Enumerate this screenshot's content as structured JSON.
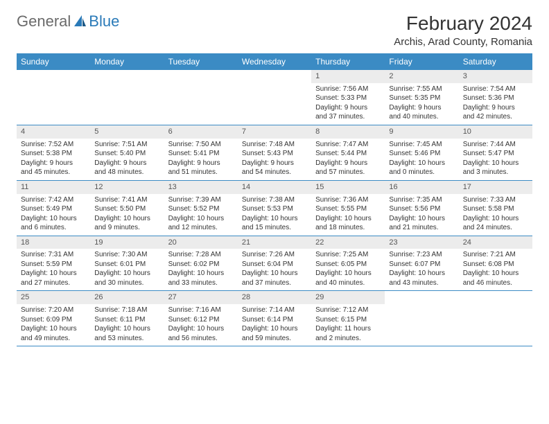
{
  "logo": {
    "text_general": "General",
    "text_blue": "Blue",
    "icon_color": "#2a7ab8"
  },
  "header": {
    "month_title": "February 2024",
    "location": "Archis, Arad County, Romania"
  },
  "colors": {
    "header_bar": "#3b8bc4",
    "header_bar_text": "#ffffff",
    "day_number_bg": "#ececec",
    "border": "#3b8bc4",
    "text": "#333333"
  },
  "weekdays": [
    "Sunday",
    "Monday",
    "Tuesday",
    "Wednesday",
    "Thursday",
    "Friday",
    "Saturday"
  ],
  "weeks": [
    [
      {
        "empty": true
      },
      {
        "empty": true
      },
      {
        "empty": true
      },
      {
        "empty": true
      },
      {
        "num": "1",
        "sunrise": "Sunrise: 7:56 AM",
        "sunset": "Sunset: 5:33 PM",
        "daylight1": "Daylight: 9 hours",
        "daylight2": "and 37 minutes."
      },
      {
        "num": "2",
        "sunrise": "Sunrise: 7:55 AM",
        "sunset": "Sunset: 5:35 PM",
        "daylight1": "Daylight: 9 hours",
        "daylight2": "and 40 minutes."
      },
      {
        "num": "3",
        "sunrise": "Sunrise: 7:54 AM",
        "sunset": "Sunset: 5:36 PM",
        "daylight1": "Daylight: 9 hours",
        "daylight2": "and 42 minutes."
      }
    ],
    [
      {
        "num": "4",
        "sunrise": "Sunrise: 7:52 AM",
        "sunset": "Sunset: 5:38 PM",
        "daylight1": "Daylight: 9 hours",
        "daylight2": "and 45 minutes."
      },
      {
        "num": "5",
        "sunrise": "Sunrise: 7:51 AM",
        "sunset": "Sunset: 5:40 PM",
        "daylight1": "Daylight: 9 hours",
        "daylight2": "and 48 minutes."
      },
      {
        "num": "6",
        "sunrise": "Sunrise: 7:50 AM",
        "sunset": "Sunset: 5:41 PM",
        "daylight1": "Daylight: 9 hours",
        "daylight2": "and 51 minutes."
      },
      {
        "num": "7",
        "sunrise": "Sunrise: 7:48 AM",
        "sunset": "Sunset: 5:43 PM",
        "daylight1": "Daylight: 9 hours",
        "daylight2": "and 54 minutes."
      },
      {
        "num": "8",
        "sunrise": "Sunrise: 7:47 AM",
        "sunset": "Sunset: 5:44 PM",
        "daylight1": "Daylight: 9 hours",
        "daylight2": "and 57 minutes."
      },
      {
        "num": "9",
        "sunrise": "Sunrise: 7:45 AM",
        "sunset": "Sunset: 5:46 PM",
        "daylight1": "Daylight: 10 hours",
        "daylight2": "and 0 minutes."
      },
      {
        "num": "10",
        "sunrise": "Sunrise: 7:44 AM",
        "sunset": "Sunset: 5:47 PM",
        "daylight1": "Daylight: 10 hours",
        "daylight2": "and 3 minutes."
      }
    ],
    [
      {
        "num": "11",
        "sunrise": "Sunrise: 7:42 AM",
        "sunset": "Sunset: 5:49 PM",
        "daylight1": "Daylight: 10 hours",
        "daylight2": "and 6 minutes."
      },
      {
        "num": "12",
        "sunrise": "Sunrise: 7:41 AM",
        "sunset": "Sunset: 5:50 PM",
        "daylight1": "Daylight: 10 hours",
        "daylight2": "and 9 minutes."
      },
      {
        "num": "13",
        "sunrise": "Sunrise: 7:39 AM",
        "sunset": "Sunset: 5:52 PM",
        "daylight1": "Daylight: 10 hours",
        "daylight2": "and 12 minutes."
      },
      {
        "num": "14",
        "sunrise": "Sunrise: 7:38 AM",
        "sunset": "Sunset: 5:53 PM",
        "daylight1": "Daylight: 10 hours",
        "daylight2": "and 15 minutes."
      },
      {
        "num": "15",
        "sunrise": "Sunrise: 7:36 AM",
        "sunset": "Sunset: 5:55 PM",
        "daylight1": "Daylight: 10 hours",
        "daylight2": "and 18 minutes."
      },
      {
        "num": "16",
        "sunrise": "Sunrise: 7:35 AM",
        "sunset": "Sunset: 5:56 PM",
        "daylight1": "Daylight: 10 hours",
        "daylight2": "and 21 minutes."
      },
      {
        "num": "17",
        "sunrise": "Sunrise: 7:33 AM",
        "sunset": "Sunset: 5:58 PM",
        "daylight1": "Daylight: 10 hours",
        "daylight2": "and 24 minutes."
      }
    ],
    [
      {
        "num": "18",
        "sunrise": "Sunrise: 7:31 AM",
        "sunset": "Sunset: 5:59 PM",
        "daylight1": "Daylight: 10 hours",
        "daylight2": "and 27 minutes."
      },
      {
        "num": "19",
        "sunrise": "Sunrise: 7:30 AM",
        "sunset": "Sunset: 6:01 PM",
        "daylight1": "Daylight: 10 hours",
        "daylight2": "and 30 minutes."
      },
      {
        "num": "20",
        "sunrise": "Sunrise: 7:28 AM",
        "sunset": "Sunset: 6:02 PM",
        "daylight1": "Daylight: 10 hours",
        "daylight2": "and 33 minutes."
      },
      {
        "num": "21",
        "sunrise": "Sunrise: 7:26 AM",
        "sunset": "Sunset: 6:04 PM",
        "daylight1": "Daylight: 10 hours",
        "daylight2": "and 37 minutes."
      },
      {
        "num": "22",
        "sunrise": "Sunrise: 7:25 AM",
        "sunset": "Sunset: 6:05 PM",
        "daylight1": "Daylight: 10 hours",
        "daylight2": "and 40 minutes."
      },
      {
        "num": "23",
        "sunrise": "Sunrise: 7:23 AM",
        "sunset": "Sunset: 6:07 PM",
        "daylight1": "Daylight: 10 hours",
        "daylight2": "and 43 minutes."
      },
      {
        "num": "24",
        "sunrise": "Sunrise: 7:21 AM",
        "sunset": "Sunset: 6:08 PM",
        "daylight1": "Daylight: 10 hours",
        "daylight2": "and 46 minutes."
      }
    ],
    [
      {
        "num": "25",
        "sunrise": "Sunrise: 7:20 AM",
        "sunset": "Sunset: 6:09 PM",
        "daylight1": "Daylight: 10 hours",
        "daylight2": "and 49 minutes."
      },
      {
        "num": "26",
        "sunrise": "Sunrise: 7:18 AM",
        "sunset": "Sunset: 6:11 PM",
        "daylight1": "Daylight: 10 hours",
        "daylight2": "and 53 minutes."
      },
      {
        "num": "27",
        "sunrise": "Sunrise: 7:16 AM",
        "sunset": "Sunset: 6:12 PM",
        "daylight1": "Daylight: 10 hours",
        "daylight2": "and 56 minutes."
      },
      {
        "num": "28",
        "sunrise": "Sunrise: 7:14 AM",
        "sunset": "Sunset: 6:14 PM",
        "daylight1": "Daylight: 10 hours",
        "daylight2": "and 59 minutes."
      },
      {
        "num": "29",
        "sunrise": "Sunrise: 7:12 AM",
        "sunset": "Sunset: 6:15 PM",
        "daylight1": "Daylight: 11 hours",
        "daylight2": "and 2 minutes."
      },
      {
        "empty": true
      },
      {
        "empty": true
      }
    ]
  ]
}
